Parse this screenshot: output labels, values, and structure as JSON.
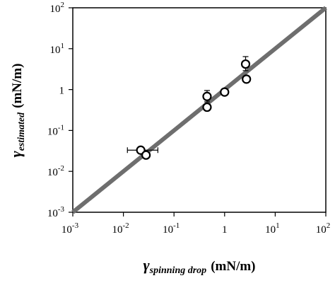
{
  "chart_data": {
    "type": "scatter",
    "title": "",
    "xlabel": {
      "symbol": "γ",
      "subscript": "spinning drop",
      "units": "(mN/m)"
    },
    "ylabel": {
      "symbol": "γ",
      "subscript": "estimated",
      "units": "(mN/m)"
    },
    "xscale": "log",
    "yscale": "log",
    "xlim": [
      0.001,
      100
    ],
    "ylim": [
      0.001,
      100
    ],
    "xticks": [
      {
        "base": "10",
        "exp": "-3"
      },
      {
        "base": "10",
        "exp": "-2"
      },
      {
        "base": "10",
        "exp": "-1"
      },
      {
        "base": "1",
        "exp": ""
      },
      {
        "base": "10",
        "exp": "1"
      },
      {
        "base": "10",
        "exp": "2"
      }
    ],
    "yticks": [
      {
        "base": "10",
        "exp": "-3"
      },
      {
        "base": "10",
        "exp": "-2"
      },
      {
        "base": "10",
        "exp": "-1"
      },
      {
        "base": "1",
        "exp": ""
      },
      {
        "base": "10",
        "exp": "1"
      },
      {
        "base": "10",
        "exp": "2"
      }
    ],
    "grid": false,
    "legend": "none",
    "reference_line": {
      "description": "y = x",
      "from": [
        0.001,
        0.001
      ],
      "to": [
        100,
        100
      ],
      "color": "#6e6e6e"
    },
    "points": [
      {
        "x": 0.022,
        "y": 0.033,
        "xerr": [
          0.012,
          0.048
        ]
      },
      {
        "x": 0.028,
        "y": 0.025
      },
      {
        "x": 0.45,
        "y": 0.68,
        "yerr": [
          0.5,
          0.95
        ]
      },
      {
        "x": 0.45,
        "y": 0.37
      },
      {
        "x": 1.0,
        "y": 0.87
      },
      {
        "x": 2.6,
        "y": 4.2,
        "yerr": [
          2.9,
          6.4
        ]
      },
      {
        "x": 2.7,
        "y": 1.8
      }
    ]
  }
}
